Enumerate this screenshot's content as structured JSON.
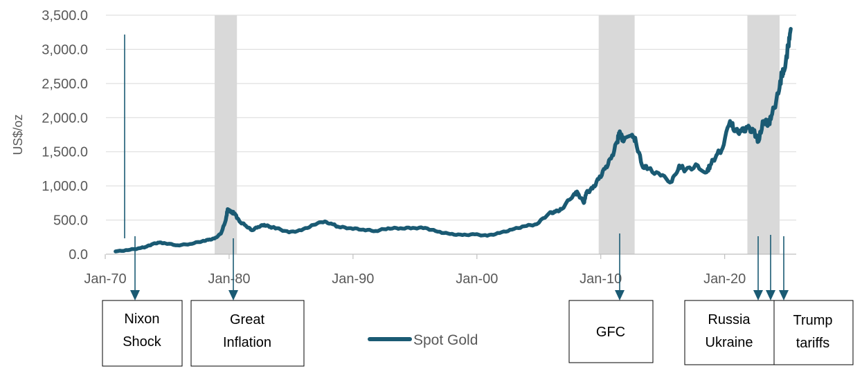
{
  "chart_data": {
    "type": "line",
    "ylabel": "US$/oz",
    "ylim": [
      0,
      3500
    ],
    "y_ticks": [
      "0.0",
      "500.0",
      "1,000.0",
      "1,500.0",
      "2,000.0",
      "2,500.0",
      "3,000.0",
      "3,500.0"
    ],
    "x_ticks": [
      "Jan-70",
      "Jan-80",
      "Jan-90",
      "Jan-00",
      "Jan-10",
      "Jan-20"
    ],
    "xlim": [
      1970,
      2026
    ],
    "grid": true,
    "legend": "bottom-center",
    "series": [
      {
        "name": "Spot Gold",
        "color": "#1a5a73",
        "x": [
          1971.0,
          1972.0,
          1973.0,
          1973.5,
          1974.0,
          1974.5,
          1975.0,
          1976.0,
          1977.0,
          1978.0,
          1978.5,
          1979.0,
          1979.5,
          1979.9,
          1980.05,
          1980.3,
          1980.6,
          1981.0,
          1981.5,
          1982.0,
          1982.5,
          1983.0,
          1983.5,
          1984.0,
          1985.0,
          1986.0,
          1987.0,
          1987.9,
          1988.5,
          1989.0,
          1990.0,
          1991.0,
          1992.0,
          1993.0,
          1994.0,
          1995.0,
          1996.0,
          1997.0,
          1998.0,
          1999.0,
          2000.0,
          2001.0,
          2002.0,
          2003.0,
          2004.0,
          2005.0,
          2006.0,
          2006.5,
          2007.0,
          2008.0,
          2008.3,
          2008.8,
          2009.0,
          2009.5,
          2010.0,
          2010.5,
          2011.0,
          2011.5,
          2011.7,
          2012.0,
          2012.7,
          2013.0,
          2013.5,
          2014.0,
          2015.0,
          2015.9,
          2016.5,
          2017.0,
          2018.0,
          2018.7,
          2019.0,
          2019.5,
          2020.0,
          2020.6,
          2021.0,
          2021.5,
          2022.0,
          2022.5,
          2022.9,
          2023.3,
          2023.7,
          2024.0,
          2024.5,
          2024.8,
          2025.0,
          2025.3,
          2025.5
        ],
        "values": [
          40,
          60,
          90,
          110,
          150,
          170,
          160,
          130,
          150,
          190,
          210,
          230,
          300,
          500,
          660,
          620,
          600,
          480,
          420,
          350,
          400,
          430,
          400,
          380,
          320,
          350,
          430,
          480,
          440,
          400,
          380,
          360,
          340,
          380,
          380,
          385,
          385,
          330,
          295,
          280,
          290,
          270,
          310,
          360,
          410,
          440,
          600,
          620,
          660,
          880,
          900,
          750,
          900,
          960,
          1100,
          1250,
          1400,
          1650,
          1800,
          1650,
          1750,
          1650,
          1300,
          1250,
          1150,
          1060,
          1300,
          1230,
          1300,
          1200,
          1300,
          1450,
          1550,
          1950,
          1800,
          1800,
          1850,
          1800,
          1650,
          1950,
          1900,
          2050,
          2350,
          2650,
          2700,
          3050,
          3300
        ]
      }
    ],
    "shaded_periods": [
      {
        "label": "Great Inflation",
        "start": 1979.0,
        "end": 1980.8
      },
      {
        "label": "GFC",
        "start": 2010.0,
        "end": 2012.9
      },
      {
        "label": "Russia Ukraine / Trump tariffs",
        "start": 2022.0,
        "end": 2024.6
      }
    ],
    "annotations": [
      {
        "lines": [
          "Nixon",
          "Shock"
        ],
        "x": 1972.3
      },
      {
        "lines": [
          "Great",
          "Inflation"
        ],
        "x": 1979.4
      },
      {
        "lines": [
          "GFC"
        ],
        "x": 2011.2
      },
      {
        "lines": [
          "Russia",
          "Ukraine"
        ],
        "x": 2022.2
      },
      {
        "lines": [
          "Trump",
          "tariffs"
        ],
        "x": 2024.2
      }
    ]
  }
}
